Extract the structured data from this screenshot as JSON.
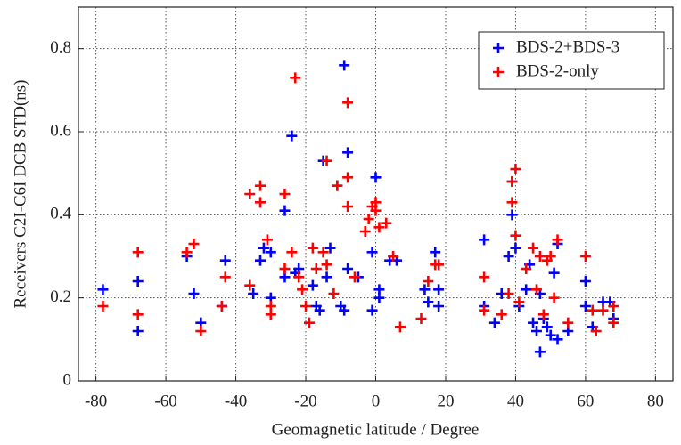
{
  "chart_data": {
    "type": "scatter",
    "xlabel": "Geomagnetic latitude / Degree",
    "ylabel": "Receivers C2I-C6I DCB STD(ns)",
    "xlim": [
      -85,
      85
    ],
    "ylim": [
      0,
      0.9
    ],
    "xticks": [
      -80,
      -60,
      -40,
      -20,
      0,
      20,
      40,
      60,
      80
    ],
    "yticks": [
      0,
      0.2,
      0.4,
      0.6,
      0.8
    ],
    "grid": true,
    "legend": "upper right",
    "series": [
      {
        "name": "BDS-2+BDS-3",
        "color": "#0000ff",
        "x": [
          -78,
          -68,
          -68,
          -54,
          -52,
          -50,
          -43,
          -44,
          -35,
          -33,
          -32,
          -30,
          -30,
          -26,
          -26,
          -24,
          -22,
          -23,
          -18,
          -17,
          -16,
          -15,
          -14,
          -13,
          -11,
          -10,
          -9,
          -8,
          -8,
          -9,
          -5,
          -1,
          -1,
          0,
          1,
          1,
          4,
          6,
          14,
          15,
          17,
          18,
          18,
          31,
          31,
          34,
          36,
          38,
          39,
          39,
          40,
          41,
          43,
          44,
          45,
          46,
          47,
          47,
          48,
          49,
          50,
          51,
          52,
          52,
          55,
          60,
          60,
          62,
          65,
          67,
          68
        ],
        "values": [
          0.22,
          0.12,
          0.24,
          0.3,
          0.21,
          0.14,
          0.29,
          0.18,
          0.21,
          0.29,
          0.32,
          0.31,
          0.2,
          0.41,
          0.25,
          0.59,
          0.27,
          0.26,
          0.23,
          0.18,
          0.17,
          0.53,
          0.25,
          0.32,
          0.47,
          0.18,
          0.76,
          0.55,
          0.27,
          0.17,
          0.25,
          0.31,
          0.17,
          0.49,
          0.22,
          0.2,
          0.29,
          0.29,
          0.22,
          0.19,
          0.31,
          0.22,
          0.18,
          0.34,
          0.18,
          0.14,
          0.21,
          0.3,
          0.48,
          0.4,
          0.32,
          0.18,
          0.22,
          0.28,
          0.14,
          0.12,
          0.07,
          0.21,
          0.15,
          0.13,
          0.11,
          0.26,
          0.1,
          0.33,
          0.12,
          0.24,
          0.18,
          0.13,
          0.19,
          0.19,
          0.15
        ]
      },
      {
        "name": "BDS-2-only",
        "color": "#ff0000",
        "x": [
          -78,
          -68,
          -68,
          -54,
          -52,
          -50,
          -44,
          -43,
          -36,
          -36,
          -33,
          -33,
          -31,
          -30,
          -30,
          -26,
          -26,
          -24,
          -23,
          -22,
          -21,
          -20,
          -19,
          -18,
          -17,
          -15,
          -14,
          -14,
          -12,
          -11,
          -8,
          -8,
          -8,
          -6,
          -3,
          -2,
          -1,
          0,
          0,
          1,
          3,
          5,
          7,
          13,
          15,
          17,
          18,
          31,
          31,
          36,
          38,
          39,
          39,
          40,
          40,
          41,
          43,
          45,
          46,
          47,
          48,
          49,
          50,
          51,
          52,
          55,
          60,
          62,
          63,
          65,
          68,
          68
        ],
        "values": [
          0.18,
          0.31,
          0.16,
          0.31,
          0.33,
          0.12,
          0.18,
          0.25,
          0.23,
          0.45,
          0.47,
          0.43,
          0.34,
          0.18,
          0.16,
          0.45,
          0.27,
          0.31,
          0.73,
          0.25,
          0.22,
          0.18,
          0.14,
          0.32,
          0.27,
          0.31,
          0.53,
          0.28,
          0.21,
          0.47,
          0.67,
          0.49,
          0.42,
          0.25,
          0.36,
          0.39,
          0.42,
          0.43,
          0.41,
          0.37,
          0.38,
          0.3,
          0.13,
          0.15,
          0.24,
          0.28,
          0.28,
          0.25,
          0.17,
          0.16,
          0.21,
          0.48,
          0.43,
          0.51,
          0.35,
          0.19,
          0.27,
          0.32,
          0.22,
          0.3,
          0.16,
          0.29,
          0.3,
          0.2,
          0.34,
          0.14,
          0.3,
          0.17,
          0.12,
          0.17,
          0.14,
          0.18
        ]
      }
    ]
  }
}
